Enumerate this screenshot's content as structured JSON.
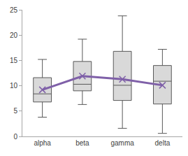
{
  "chart_data": {
    "type": "box",
    "categories": [
      "alpha",
      "beta",
      "gamma",
      "delta"
    ],
    "min": [
      3.8,
      6.3,
      1.6,
      0.6
    ],
    "q1": [
      6.8,
      9.0,
      7.1,
      6.4
    ],
    "median": [
      8.4,
      10.3,
      10.1,
      10.9
    ],
    "q3": [
      11.6,
      14.8,
      16.8,
      14.0
    ],
    "max": [
      15.2,
      19.2,
      23.8,
      17.2
    ],
    "color": "#d9d9d9",
    "mean": {
      "values": [
        9.2,
        11.9,
        11.3,
        10.1
      ],
      "color": "#7f60a8",
      "marker": "x",
      "line_style": "solid"
    },
    "ylim": [
      0,
      25
    ],
    "yticks": [
      0,
      5,
      10,
      15,
      20,
      25
    ],
    "grid": false
  }
}
